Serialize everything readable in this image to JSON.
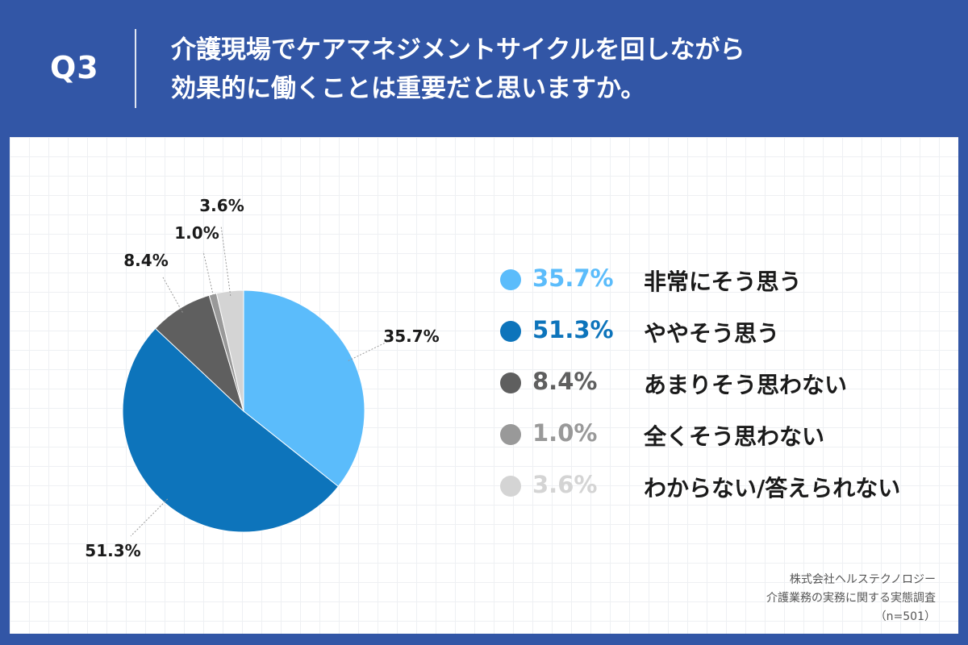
{
  "header": {
    "q_label": "Q3",
    "title_line1": "介護現場でケアマネジメントサイクルを回しながら",
    "title_line2": "効果的に働くことは重要だと思いますか。"
  },
  "colors": {
    "background": "#3256a6",
    "panel": "#ffffff"
  },
  "chart_data": {
    "type": "pie",
    "unit": "%",
    "slices": [
      {
        "label": "非常にそう思う",
        "value": 35.7,
        "value_label": "35.7%",
        "color": "#5bbcfb"
      },
      {
        "label": "ややそう思う",
        "value": 51.3,
        "value_label": "51.3%",
        "color": "#0d74bb"
      },
      {
        "label": "あまりそう思わない",
        "value": 8.4,
        "value_label": "8.4%",
        "color": "#5f5f5f"
      },
      {
        "label": "全くそう思わない",
        "value": 1.0,
        "value_label": "1.0%",
        "color": "#999999"
      },
      {
        "label": "わからない/答えられない",
        "value": 3.6,
        "value_label": "3.6%",
        "color": "#d4d4d4"
      }
    ],
    "legend_placement": "right"
  },
  "footer": {
    "line1": "株式会社ヘルステクノロジー",
    "line2": "介護業務の実務に関する実態調査",
    "line3": "（n=501）"
  }
}
